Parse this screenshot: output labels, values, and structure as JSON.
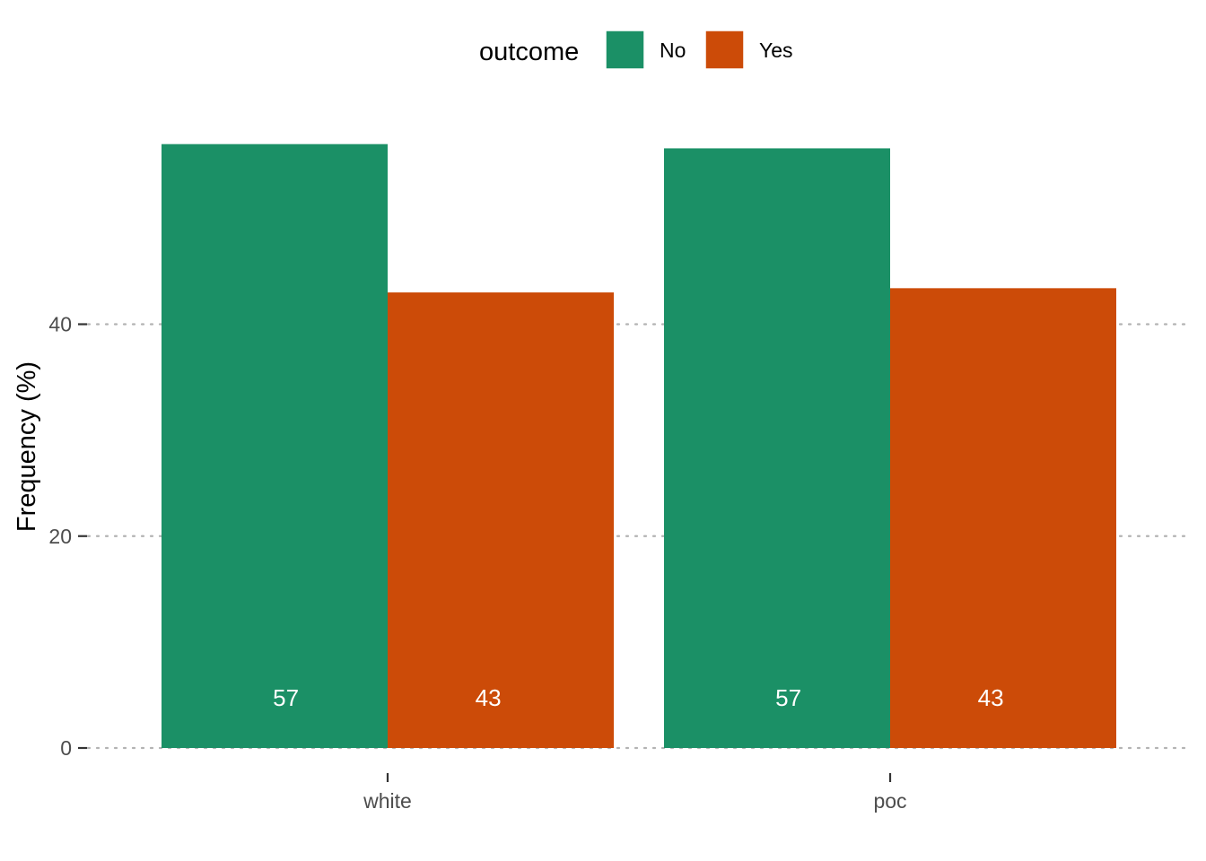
{
  "chart_data": {
    "type": "bar",
    "categories": [
      "white",
      "poc"
    ],
    "series": [
      {
        "name": "No",
        "values": [
          57,
          56.6
        ],
        "color": "#1b9066"
      },
      {
        "name": "Yes",
        "values": [
          43,
          43.4
        ],
        "color": "#cc4b08"
      }
    ],
    "data_labels": [
      [
        "57",
        "57"
      ],
      [
        "43",
        "43"
      ]
    ],
    "title": "",
    "xlabel": "",
    "ylabel": "Frequency (%)",
    "ylim": [
      0,
      60
    ],
    "yticks": [
      0,
      20,
      40
    ],
    "ytick_labels": [
      "0",
      "20",
      "40"
    ],
    "grid": "horizontal dotted",
    "legend": {
      "title": "outcome",
      "placement": "top"
    }
  }
}
